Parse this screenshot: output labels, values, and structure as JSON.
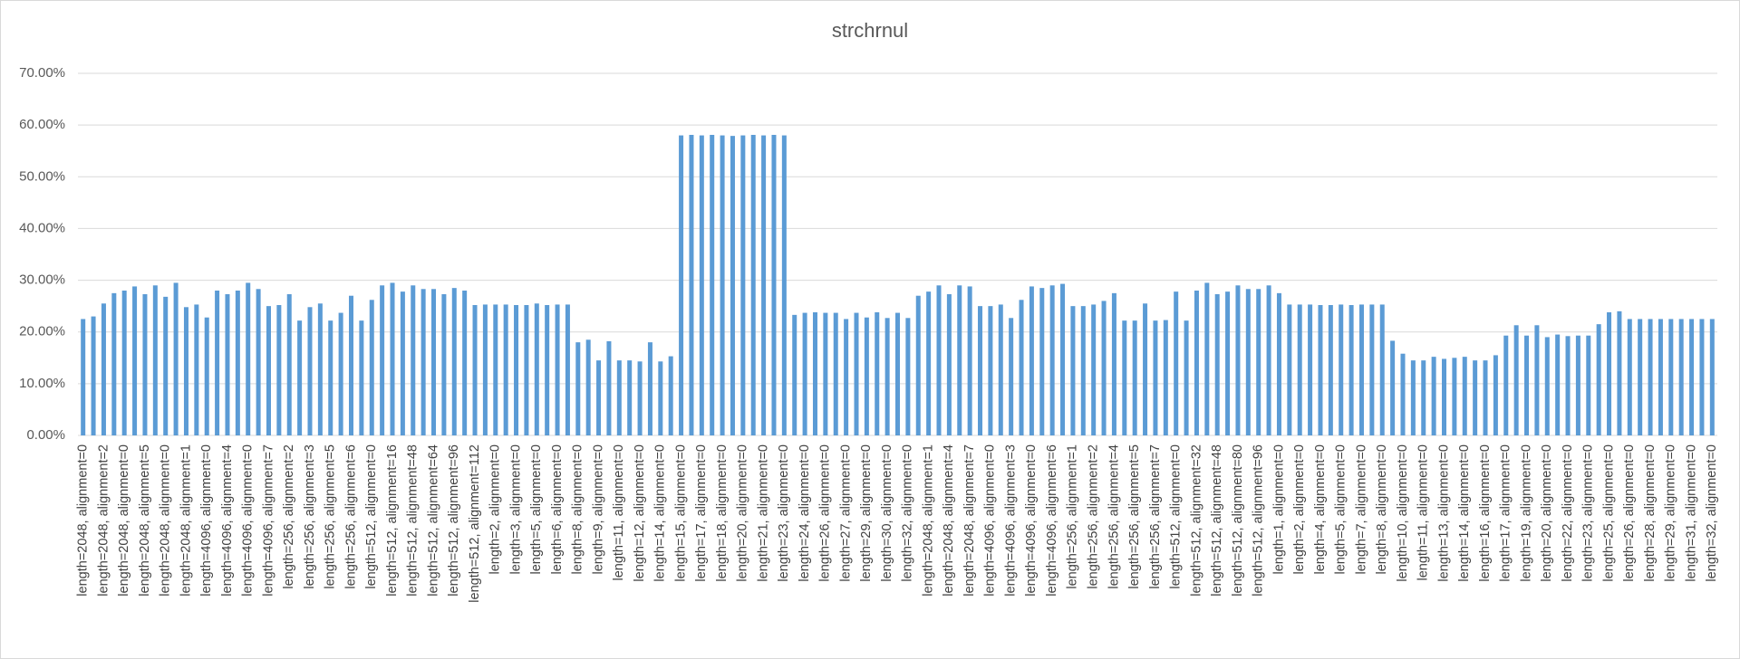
{
  "chart_data": {
    "type": "bar",
    "title": "strchrnul",
    "categories": [
      "length=2048, alignment=0",
      null,
      "length=2048, alignment=2",
      null,
      "length=2048, alignment=0",
      null,
      "length=2048, alignment=5",
      null,
      "length=2048, alignment=0",
      null,
      "length=2048, alignment=1",
      null,
      "length=4096, alignment=0",
      null,
      "length=4096, alignment=4",
      null,
      "length=4096, alignment=0",
      null,
      "length=4096, alignment=7",
      null,
      "length=256, alignment=2",
      null,
      "length=256, alignment=3",
      null,
      "length=256, alignment=5",
      null,
      "length=256, alignment=6",
      null,
      "length=512, alignment=0",
      null,
      "length=512, alignment=16",
      null,
      "length=512, alignment=48",
      null,
      "length=512, alignment=64",
      null,
      "length=512, alignment=96",
      null,
      "length=512, alignment=112",
      null,
      "length=2, alignment=0",
      null,
      "length=3, alignment=0",
      null,
      "length=5, alignment=0",
      null,
      "length=6, alignment=0",
      null,
      "length=8, alignment=0",
      null,
      "length=9, alignment=0",
      null,
      "length=11, alignment=0",
      null,
      "length=12, alignment=0",
      null,
      "length=14, alignment=0",
      null,
      "length=15, alignment=0",
      null,
      "length=17, alignment=0",
      null,
      "length=18, alignment=0",
      null,
      "length=20, alignment=0",
      null,
      "length=21, alignment=0",
      null,
      "length=23, alignment=0",
      null,
      "length=24, alignment=0",
      null,
      "length=26, alignment=0",
      null,
      "length=27, alignment=0",
      null,
      "length=29, alignment=0",
      null,
      "length=30, alignment=0",
      null,
      "length=32, alignment=0",
      null,
      "length=2048, alignment=1",
      null,
      "length=2048, alignment=4",
      null,
      "length=2048, alignment=7",
      null,
      "length=4096, alignment=0",
      null,
      "length=4096, alignment=3",
      null,
      "length=4096, alignment=0",
      null,
      "length=4096, alignment=6",
      null,
      "length=256, alignment=1",
      null,
      "length=256, alignment=2",
      null,
      "length=256, alignment=4",
      null,
      "length=256, alignment=5",
      null,
      "length=256, alignment=7",
      null,
      "length=512, alignment=0",
      null,
      "length=512, alignment=32",
      null,
      "length=512, alignment=48",
      null,
      "length=512, alignment=80",
      null,
      "length=512, alignment=96",
      null,
      "length=1, alignment=0",
      null,
      "length=2, alignment=0",
      null,
      "length=4, alignment=0",
      null,
      "length=5, alignment=0",
      null,
      "length=7, alignment=0",
      null,
      "length=8, alignment=0",
      null,
      "length=10, alignment=0",
      null,
      "length=11, alignment=0",
      null,
      "length=13, alignment=0",
      null,
      "length=14, alignment=0",
      null,
      "length=16, alignment=0",
      null,
      "length=17, alignment=0",
      null,
      "length=19, alignment=0",
      null,
      "length=20, alignment=0",
      null,
      "length=22, alignment=0",
      null,
      "length=23, alignment=0",
      null,
      "length=25, alignment=0",
      null,
      "length=26, alignment=0",
      null,
      "length=28, alignment=0",
      null,
      "length=29, alignment=0",
      null,
      "length=31, alignment=0",
      null,
      "length=32, alignment=0"
    ],
    "values": [
      22.5,
      23,
      25.5,
      27.5,
      28,
      28.8,
      27.3,
      29,
      26.8,
      29.5,
      24.8,
      25.3,
      22.8,
      28,
      27.3,
      28,
      29.5,
      28.3,
      25,
      25.2,
      27.3,
      22.2,
      24.8,
      25.5,
      22.2,
      23.7,
      27,
      22.2,
      26.2,
      29,
      29.5,
      27.8,
      29,
      28.3,
      28.3,
      27.3,
      28.5,
      28,
      25.2,
      25.3,
      25.3,
      25.3,
      25.2,
      25.2,
      25.5,
      25.2,
      25.3,
      25.3,
      18,
      18.5,
      14.5,
      18.2,
      14.5,
      14.5,
      14.3,
      18,
      14.3,
      15.3,
      58,
      58.1,
      58,
      58.1,
      58,
      57.9,
      58,
      58.1,
      58,
      58.1,
      58,
      23.3,
      23.7,
      23.8,
      23.7,
      23.7,
      22.5,
      23.7,
      22.8,
      23.8,
      22.7,
      23.7,
      22.7,
      27,
      27.8,
      29,
      27.3,
      29,
      28.8,
      25,
      25,
      25.3,
      22.7,
      26.2,
      28.8,
      28.5,
      29,
      29.3,
      25,
      25,
      25.3,
      26,
      27.5,
      22.2,
      22.2,
      25.5,
      22.2,
      22.3,
      27.8,
      22.2,
      28,
      29.5,
      27.3,
      27.8,
      29,
      28.3,
      28.3,
      29,
      27.5,
      25.3,
      25.3,
      25.3,
      25.2,
      25.2,
      25.3,
      25.2,
      25.3,
      25.3,
      25.3,
      18.3,
      15.8,
      14.5,
      14.5,
      15.2,
      14.8,
      15,
      15.2,
      14.5,
      14.5,
      15.5,
      19.3,
      21.3,
      19.3,
      21.3,
      19,
      19.5,
      19.2,
      19.3,
      19.3,
      21.5,
      23.8,
      24,
      22.5,
      22.5,
      22.5,
      22.5,
      22.5,
      22.5,
      22.5,
      22.5,
      22.5
    ],
    "color": "#5b9bd5",
    "ylim": [
      0,
      70
    ],
    "yticks": [
      {
        "value": 0,
        "label": "0.00%"
      },
      {
        "value": 10,
        "label": "10.00%"
      },
      {
        "value": 20,
        "label": "20.00%"
      },
      {
        "value": 30,
        "label": "30.00%"
      },
      {
        "value": 40,
        "label": "40.00%"
      },
      {
        "value": 50,
        "label": "50.00%"
      },
      {
        "value": 60,
        "label": "60.00%"
      },
      {
        "value": 70,
        "label": "70.00%"
      }
    ],
    "grid": true
  }
}
